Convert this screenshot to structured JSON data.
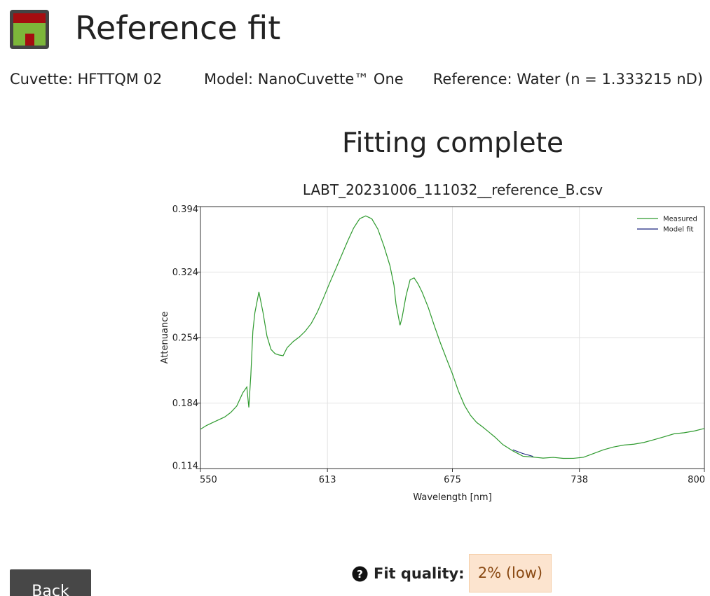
{
  "header": {
    "title": "Reference fit",
    "logo_icon": "app-logo-icon"
  },
  "info": {
    "cuvette": "Cuvette: HFTTQM 02",
    "model": "Model: NanoCuvette™ One",
    "reference": "Reference: Water (n = 1.333215 nD)"
  },
  "status": {
    "heading": "Fitting complete"
  },
  "chart_data": {
    "type": "line",
    "title": "LABT_20231006_111032__reference_B.csv",
    "xlabel": "Wavelength [nm]",
    "ylabel": "Attenuance",
    "xlim": [
      550,
      800
    ],
    "ylim": [
      0.114,
      0.394
    ],
    "xticks": [
      550,
      613,
      675,
      738,
      800
    ],
    "xtick_labels": [
      "550",
      "613",
      "675",
      "738",
      "800"
    ],
    "yticks": [
      0.114,
      0.184,
      0.254,
      0.324,
      0.394
    ],
    "ytick_labels": [
      "0.114",
      "0.184",
      "0.254",
      "0.324",
      "0.394"
    ],
    "grid": true,
    "legend_position": "top-right",
    "series": [
      {
        "name": "Measured",
        "color": "#2e9a2e",
        "x": [
          550,
          553,
          556,
          559,
          562,
          565,
          568,
          571,
          573,
          574,
          575,
          576,
          577,
          579,
          581,
          583,
          585,
          587,
          589,
          591,
          593,
          596,
          599,
          602,
          605,
          608,
          611,
          614,
          617,
          620,
          623,
          626,
          629,
          632,
          635,
          638,
          641,
          644,
          646,
          647,
          649,
          650,
          652,
          654,
          656,
          658,
          660,
          663,
          666,
          669,
          672,
          675,
          678,
          681,
          684,
          687,
          690,
          693,
          696,
          700,
          705,
          710,
          715,
          720,
          725,
          730,
          735,
          740,
          745,
          750,
          755,
          760,
          765,
          770,
          775,
          780,
          785,
          790,
          795,
          800
        ],
        "values": [
          0.156,
          0.159,
          0.162,
          0.166,
          0.17,
          0.175,
          0.181,
          0.194,
          0.2,
          0.179,
          0.215,
          0.262,
          0.281,
          0.302,
          0.28,
          0.255,
          0.242,
          0.238,
          0.236,
          0.234,
          0.242,
          0.249,
          0.255,
          0.262,
          0.27,
          0.281,
          0.295,
          0.311,
          0.327,
          0.343,
          0.358,
          0.371,
          0.38,
          0.383,
          0.381,
          0.371,
          0.353,
          0.331,
          0.309,
          0.289,
          0.267,
          0.276,
          0.3,
          0.316,
          0.317,
          0.31,
          0.302,
          0.287,
          0.268,
          0.249,
          0.231,
          0.214,
          0.196,
          0.182,
          0.172,
          0.164,
          0.158,
          0.152,
          0.147,
          0.14,
          0.134,
          0.128,
          0.126,
          0.124,
          0.125,
          0.125,
          0.126,
          0.127,
          0.13,
          0.133,
          0.136,
          0.139,
          0.141,
          0.143,
          0.145,
          0.147,
          0.15,
          0.152,
          0.155,
          0.158
        ]
      },
      {
        "name": "Model fit",
        "color": "#1a237e",
        "x": [
          705,
          710,
          715
        ],
        "values": [
          0.134,
          0.13,
          0.127
        ]
      }
    ]
  },
  "fit_quality": {
    "label": "Fit quality:",
    "value": "2% (low)",
    "icon": "help-circle-icon"
  },
  "actions": {
    "back_label": "Back"
  }
}
